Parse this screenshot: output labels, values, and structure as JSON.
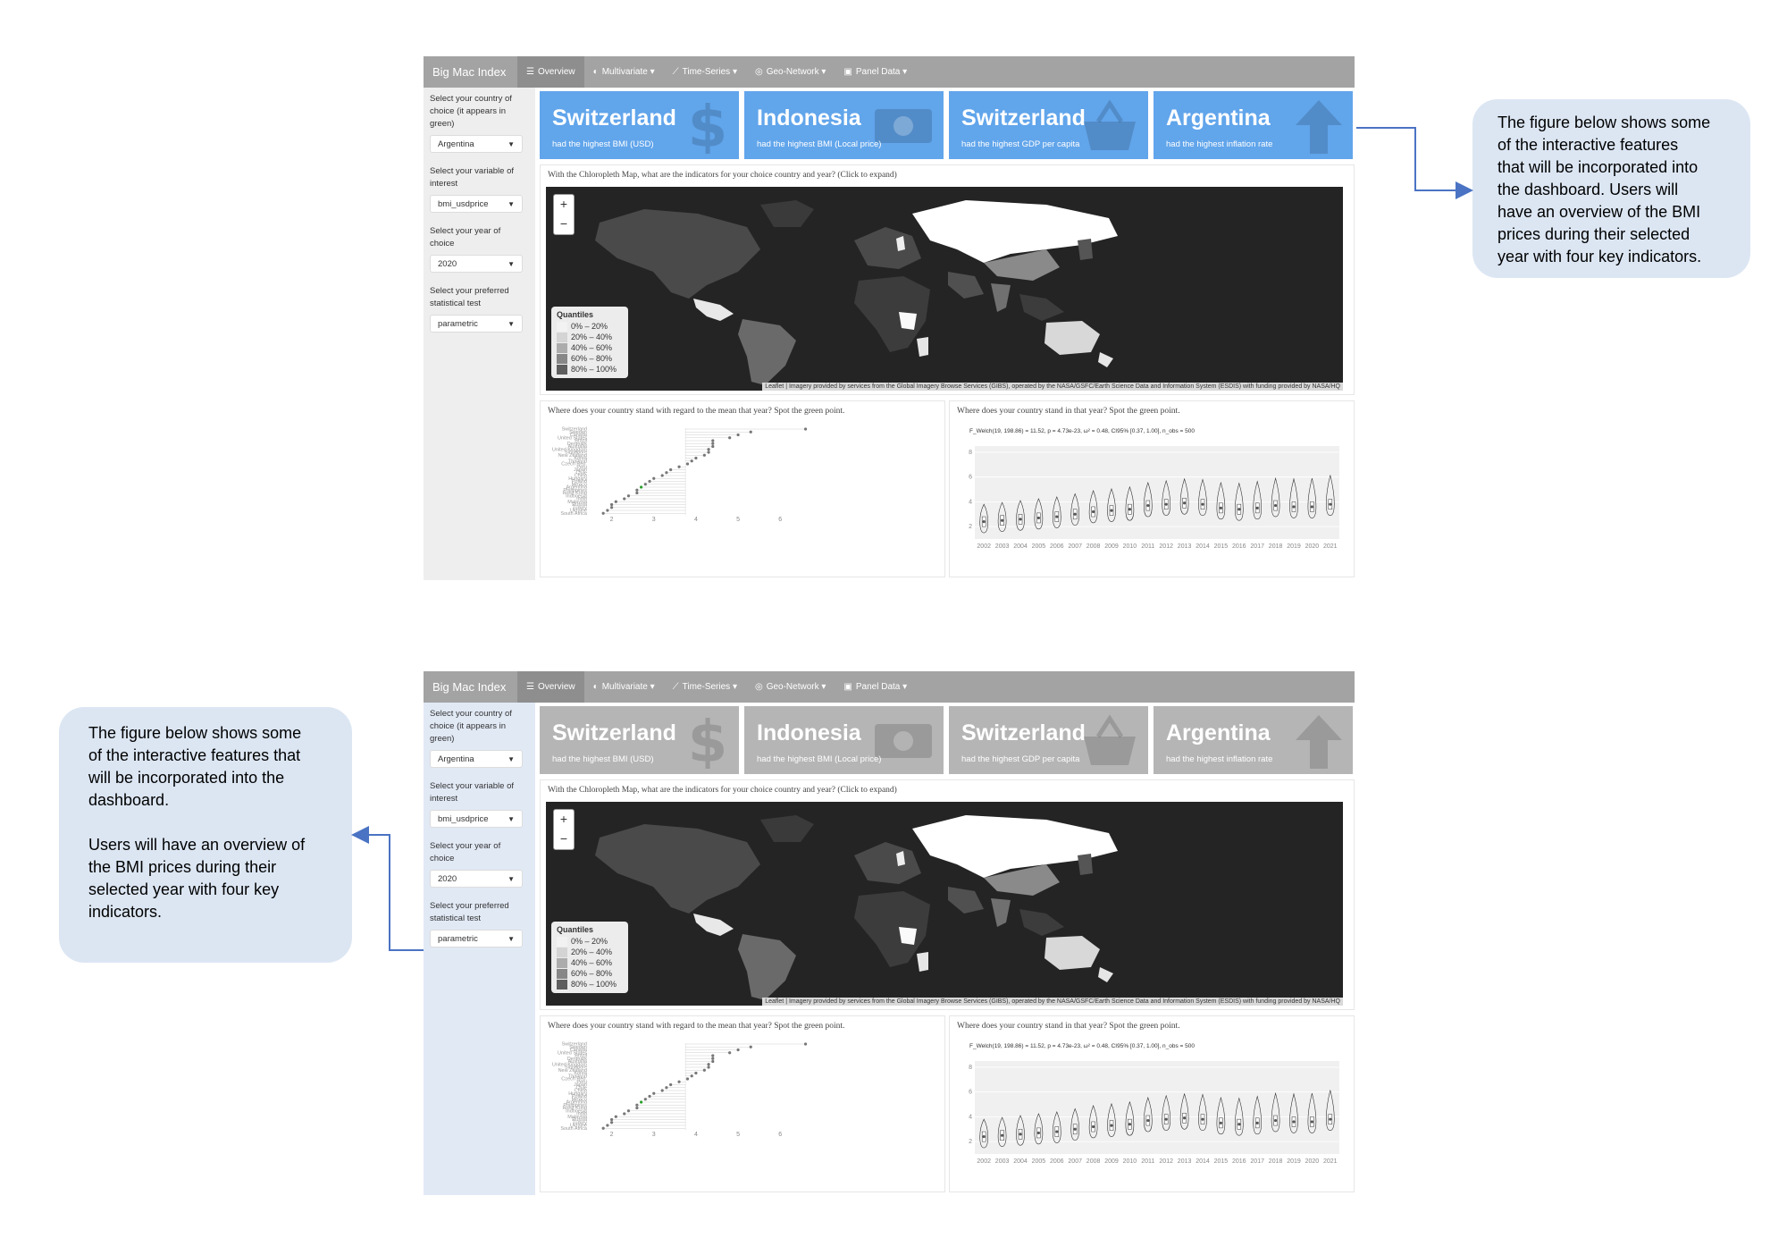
{
  "callout_top": {
    "text": "The figure below shows some\nof the interactive features\nthat will be incorporated into\nthe dashboard. Users will\nhave an overview of the BMI\nprices during their selected\nyear with four key indicators."
  },
  "callout_bottom": {
    "text": "The figure below shows some\nof the interactive features that\nwill be incorporated into the\ndashboard.\n\nUsers will have an overview of\nthe BMI prices during their\nselected year with four key\nindicators."
  },
  "app": {
    "brand": "Big Mac Index",
    "nav": [
      {
        "label": "Overview",
        "icon": "list-icon"
      },
      {
        "label": "Multivariate ▾",
        "icon": "palette-icon"
      },
      {
        "label": "Time-Series ▾",
        "icon": "line-chart-icon"
      },
      {
        "label": "Geo-Network ▾",
        "icon": "globe-icon"
      },
      {
        "label": "Panel Data ▾",
        "icon": "table-icon"
      }
    ],
    "sidebar": {
      "country_label": "Select your country of choice (it appears in green)",
      "country_value": "Argentina",
      "variable_label": "Select your variable of interest",
      "variable_value": "bmi_usdprice",
      "year_label": "Select your year of choice",
      "year_value": "2020",
      "test_label": "Select your preferred statistical test",
      "test_value": "parametric"
    },
    "value_boxes": [
      {
        "value": "Switzerland",
        "subtitle": "had the highest BMI (USD)",
        "icon": "dollar-icon"
      },
      {
        "value": "Indonesia",
        "subtitle": "had the highest BMI (Local price)",
        "icon": "money-bill-icon"
      },
      {
        "value": "Switzerland",
        "subtitle": "had the highest GDP per capita",
        "icon": "basket-icon"
      },
      {
        "value": "Argentina",
        "subtitle": "had the highest inflation rate",
        "icon": "arrow-up-icon"
      }
    ],
    "map_panel": {
      "title": "With the Chloropleth Map, what are the indicators for your choice country and year? (Click to expand)",
      "zoom_in": "+",
      "zoom_out": "−",
      "legend_title": "Quantiles",
      "legend_items": [
        {
          "label": "0% – 20%",
          "color": "#f2f2f2"
        },
        {
          "label": "20% – 40%",
          "color": "#d4d4d4"
        },
        {
          "label": "40% – 60%",
          "color": "#acacac"
        },
        {
          "label": "60% – 80%",
          "color": "#878787"
        },
        {
          "label": "80% – 100%",
          "color": "#5e5e5e"
        }
      ],
      "attribution": "Leaflet | Imagery provided by services from the Global Imagery Browse Services (GIBS), operated by the NASA/GSFC/Earth Science Data and Information System (ESDIS) with funding provided by NASA/HQ"
    },
    "dot_panel": {
      "title": "Where does your country stand with regard to the mean that year? Spot the green point."
    },
    "violin_panel": {
      "title": "Where does your country stand in that year? Spot the green point.",
      "stat_label": "F_Welch(19, 198.86) = 11.52, p = 4.73e-23, ω² = 0.48, CI95% [0.37, 1.00], n_obs = 500"
    }
  },
  "chart_data": [
    {
      "type": "scatter",
      "title": "",
      "categories": [
        "Switzerland",
        "Sweden",
        "Canada",
        "United States",
        "Brazil",
        "Denmark",
        "Australia",
        "United Kingdom",
        "Singapore",
        "New Zealand",
        "Korea",
        "Thailand",
        "Czech Rep.",
        "Peru",
        "Japan",
        "Chile",
        "China",
        "Hungary",
        "Poland",
        "Mexico",
        "Argentina",
        "Philippines",
        "Hong Kong",
        "Indonesia",
        "India",
        "Malaysia",
        "Russia",
        "Turkey",
        "Ukraine",
        "South Africa"
      ],
      "values": [
        6.6,
        5.3,
        5.0,
        4.8,
        4.4,
        4.4,
        4.4,
        4.3,
        4.3,
        4.2,
        4.0,
        3.9,
        3.8,
        3.6,
        3.4,
        3.3,
        3.2,
        3.0,
        2.9,
        2.8,
        2.7,
        2.6,
        2.6,
        2.4,
        2.3,
        2.1,
        2.0,
        2.0,
        1.9,
        1.8
      ],
      "x_ticks": [
        "2",
        "3",
        "4",
        "5",
        "6"
      ],
      "xlim": [
        1.5,
        6.8
      ]
    },
    {
      "type": "violin",
      "title": "",
      "categories": [
        "2002",
        "2003",
        "2004",
        "2005",
        "2006",
        "2007",
        "2008",
        "2009",
        "2010",
        "2011",
        "2012",
        "2013",
        "2014",
        "2015",
        "2016",
        "2017",
        "2018",
        "2019",
        "2020",
        "2021"
      ],
      "medians": [
        2.4,
        2.5,
        2.6,
        2.7,
        2.8,
        3.0,
        3.2,
        3.3,
        3.4,
        3.7,
        3.8,
        3.9,
        3.8,
        3.5,
        3.4,
        3.5,
        3.7,
        3.6,
        3.6,
        3.8
      ],
      "y_ticks": [
        "2",
        "4",
        "6",
        "8"
      ],
      "ylim": [
        1,
        8.5
      ]
    }
  ]
}
